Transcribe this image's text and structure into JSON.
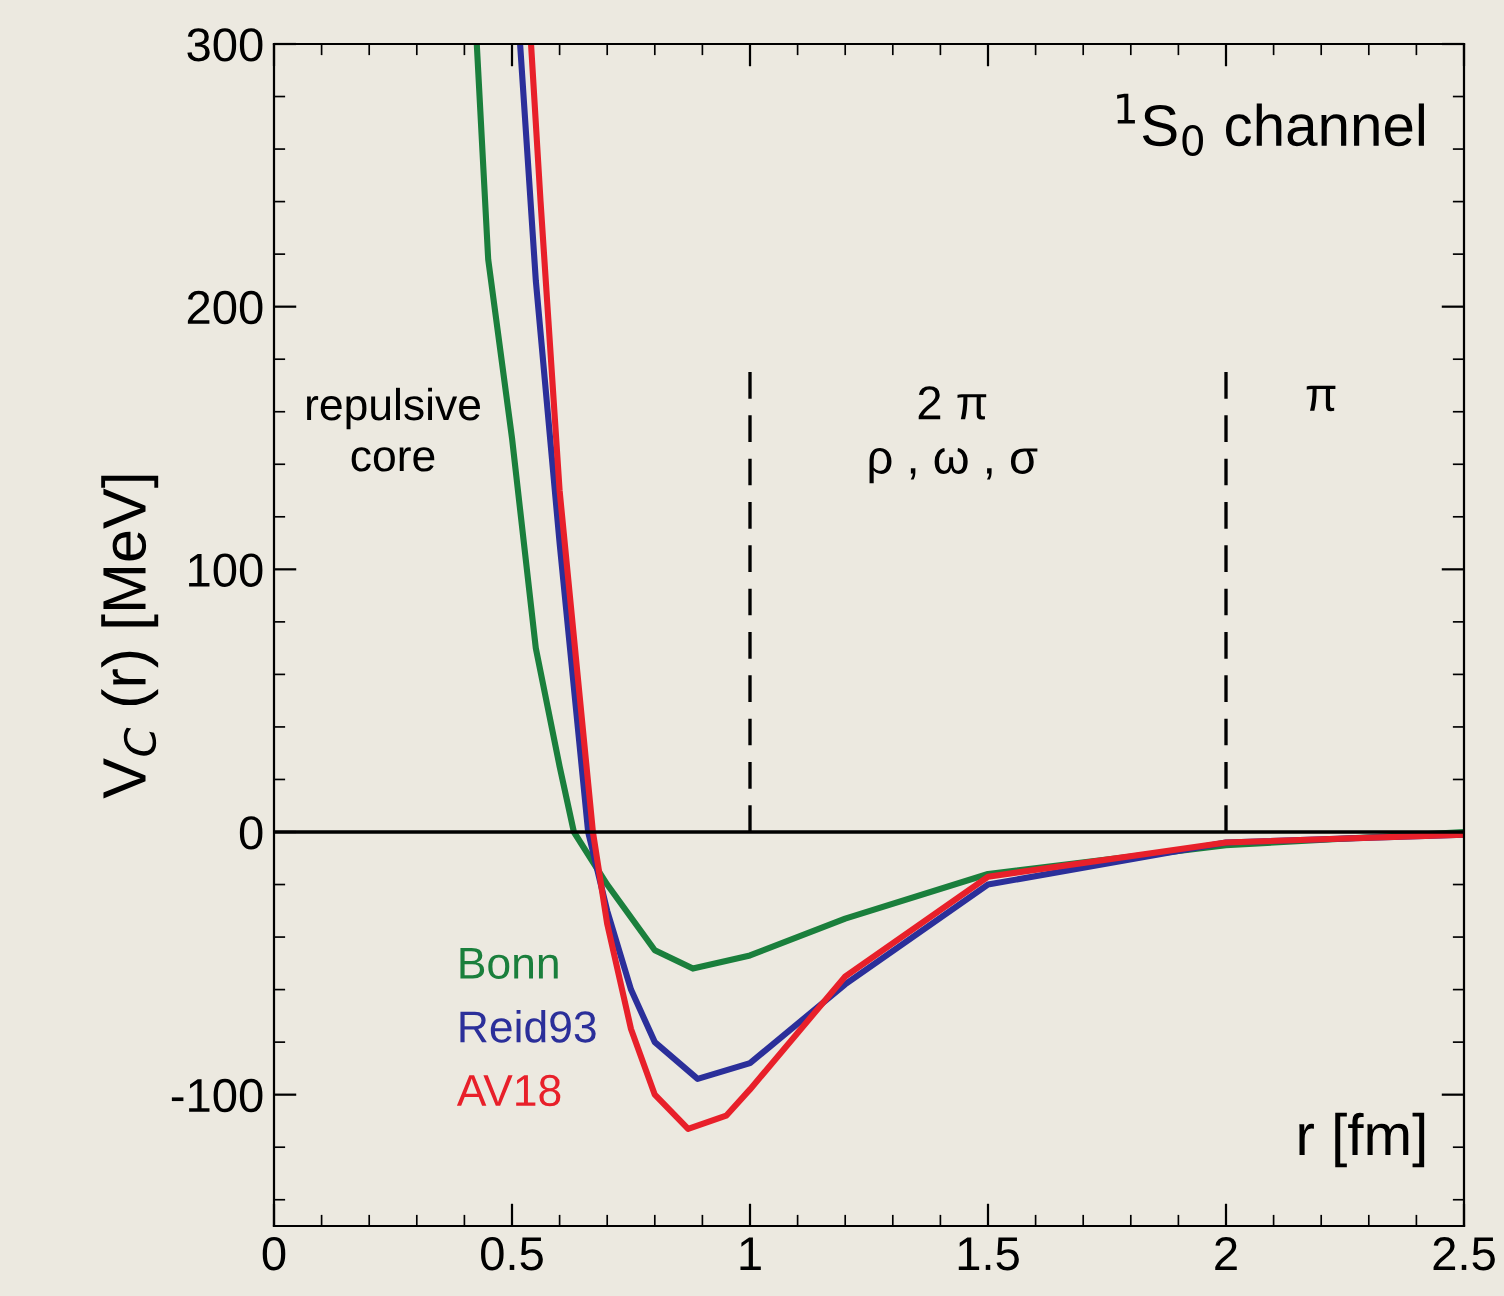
{
  "chart_data": {
    "type": "line",
    "xlabel": "r [fm]",
    "ylabel": "V$_{C}$ (r) [MeV]",
    "x": [
      0.426,
      0.45,
      0.5,
      0.55,
      0.6,
      0.63,
      0.7,
      0.8,
      0.88,
      1.0,
      1.2,
      1.5,
      2.0,
      2.5
    ],
    "series": [
      {
        "name": "Bonn",
        "color": "#1a7f3c",
        "values": [
          300,
          218,
          150,
          70,
          25,
          0,
          -20,
          -45,
          -52,
          -47,
          -33,
          -16,
          -5,
          0
        ]
      },
      {
        "name": "Reid93",
        "color": "#2b2f9a",
        "x": [
          0.517,
          0.55,
          0.6,
          0.66,
          0.7,
          0.75,
          0.8,
          0.89,
          1.0,
          1.2,
          1.5,
          2.0,
          2.5
        ],
        "values": [
          300,
          210,
          110,
          0,
          -30,
          -60,
          -80,
          -94,
          -88,
          -58,
          -20,
          -4,
          -1
        ]
      },
      {
        "name": "AV18",
        "color": "#e8202a",
        "x": [
          0.54,
          0.56,
          0.6,
          0.67,
          0.7,
          0.75,
          0.8,
          0.87,
          0.95,
          1.0,
          1.2,
          1.5,
          2.0,
          2.5
        ],
        "values": [
          300,
          240,
          130,
          0,
          -35,
          -75,
          -100,
          -113,
          -108,
          -98,
          -55,
          -17,
          -4,
          -1
        ]
      }
    ],
    "xlim": [
      0,
      2.5
    ],
    "ylim": [
      -150,
      300
    ],
    "xticks": [
      0,
      0.5,
      1,
      1.5,
      2,
      2.5
    ],
    "yticks": [
      -100,
      0,
      100,
      200,
      300
    ],
    "ref_lines": [
      {
        "axis": "x",
        "value": 1,
        "line_style": "dashed",
        "color": "#000000"
      },
      {
        "axis": "x",
        "value": 2,
        "line_style": "dashed",
        "color": "#000000"
      },
      {
        "axis": "y",
        "value": 0,
        "line_style": "solid",
        "color": "#000000"
      }
    ],
    "annotations": [
      "$^{1}$S$_{0}$ channel",
      "repulsive\ncore",
      "2 π\nρ , ω , σ",
      "π"
    ],
    "legend": "bottom left",
    "grid": false,
    "marker": "none",
    "line_style": "solid"
  }
}
